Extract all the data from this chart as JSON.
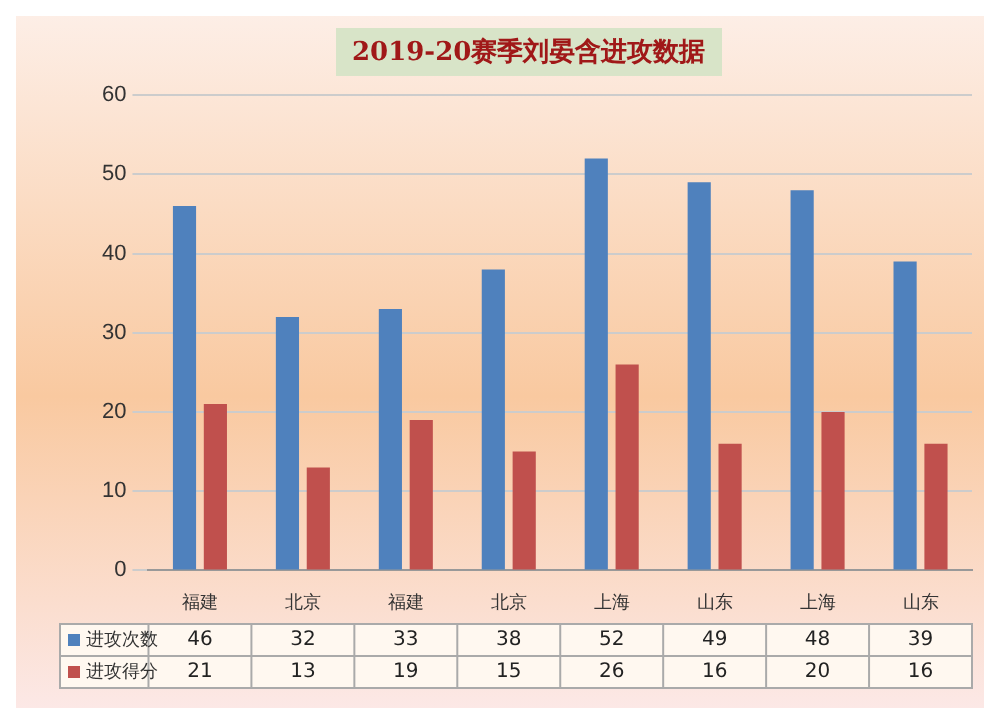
{
  "chart_data": {
    "type": "bar",
    "title": "2019-20赛季刘晏含进攻数据",
    "categories": [
      "福建",
      "北京",
      "福建",
      "北京",
      "上海",
      "山东",
      "上海",
      "山东"
    ],
    "series": [
      {
        "name": "进攻次数",
        "color": "#4f81bd",
        "values": [
          46,
          32,
          33,
          38,
          52,
          49,
          48,
          39
        ]
      },
      {
        "name": "进攻得分",
        "color": "#c0504d",
        "values": [
          21,
          13,
          19,
          15,
          26,
          16,
          20,
          16
        ]
      }
    ],
    "ylim": [
      0,
      60
    ],
    "yticks": [
      0,
      10,
      20,
      30,
      40,
      50,
      60
    ],
    "grid": "y",
    "legend": "bottom left",
    "data_labels": true
  }
}
